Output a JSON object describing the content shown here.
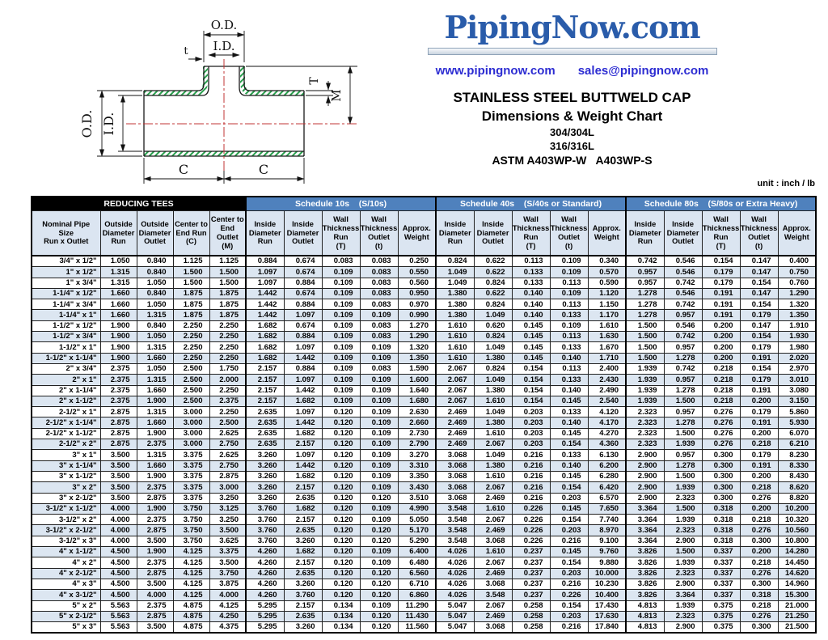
{
  "header": {
    "logo": "PipingNow.com",
    "website": "www.pipingnow.com",
    "email": "sales@pipingnow.com",
    "title1": "STAINLESS STEEL BUTTWELD CAP",
    "title2": "Dimensions & Weight Chart",
    "grade1": "304/304L",
    "grade2": "316/316L",
    "spec": "ASTM A403WP-W   A403WP-S",
    "unit_note": "unit : inch / lb"
  },
  "drawing": {
    "labels": {
      "od_branch": "O.D.",
      "id_branch": "I.D.",
      "t_branch": "t",
      "wall_T": "T",
      "length_M": "M",
      "od_run": "O.D.",
      "id_run": "I.D.",
      "c_left": "C",
      "c_right": "C"
    }
  },
  "colors": {
    "accent_blue": "#4f81bd",
    "band_black": "#000000",
    "header_bg": "#dbe5f1",
    "row_stripe": "#dce6f1",
    "logo_blue": "#2a5caa",
    "link_blue": "#2d2dd2",
    "hatch_green": "#2aa14e",
    "centerline_red": "#c23434"
  },
  "table": {
    "bands": [
      {
        "label": "REDUCING TEES"
      },
      {
        "label": "Schedule 10s    (S/10s)"
      },
      {
        "label": "Schedule 40s    (S/40s or Standard)"
      },
      {
        "label": "Schedule 80s    (S/80s or Extra Heavy)"
      }
    ],
    "columns": [
      "Nominal Pipe\nSize\nRun x Outlet",
      "Outside\nDiameter\nRun",
      "Outside\nDiameter\nOutlet",
      "Center to\nEnd Run\n(C)",
      "Center to\nEnd\nOutlet\n(M)",
      "Inside\nDiameter\nRun",
      "Inside\nDiameter\nOutlet",
      "Wall\nThickness\nRun\n(T)",
      "Wall\nThickness\nOutlet\n(t)",
      "Approx.\nWeight",
      "Inside\nDiameter\nRun",
      "Inside\nDiameter\nOutlet",
      "Wall\nThickness\nRun\n(T)",
      "Wall\nThickness\nOutlet\n(t)",
      "Approx.\nWeight",
      "Inside\nDiameter\nRun",
      "Inside\nDiameter\nOutlet",
      "Wall\nThickness\nRun\n(T)",
      "Wall\nThickness\nOutlet\n(t)",
      "Approx.\nWeight"
    ],
    "rows": [
      [
        "3/4\" x 1/2\"",
        "1.050",
        "0.840",
        "1.125",
        "1.125",
        "0.884",
        "0.674",
        "0.083",
        "0.083",
        "0.250",
        "0.824",
        "0.622",
        "0.113",
        "0.109",
        "0.340",
        "0.742",
        "0.546",
        "0.154",
        "0.147",
        "0.400"
      ],
      [
        "1\" x 1/2\"",
        "1.315",
        "0.840",
        "1.500",
        "1.500",
        "1.097",
        "0.674",
        "0.109",
        "0.083",
        "0.550",
        "1.049",
        "0.622",
        "0.133",
        "0.109",
        "0.570",
        "0.957",
        "0.546",
        "0.179",
        "0.147",
        "0.750"
      ],
      [
        "1\" x 3/4\"",
        "1.315",
        "1.050",
        "1.500",
        "1.500",
        "1.097",
        "0.884",
        "0.109",
        "0.083",
        "0.560",
        "1.049",
        "0.824",
        "0.133",
        "0.113",
        "0.590",
        "0.957",
        "0.742",
        "0.179",
        "0.154",
        "0.760"
      ],
      [
        "1-1/4\" x 1/2\"",
        "1.660",
        "0.840",
        "1.875",
        "1.875",
        "1.442",
        "0.674",
        "0.109",
        "0.083",
        "0.950",
        "1.380",
        "0.622",
        "0.140",
        "0.109",
        "1.120",
        "1.278",
        "0.546",
        "0.191",
        "0.147",
        "1.290"
      ],
      [
        "1-1/4\" x 3/4\"",
        "1.660",
        "1.050",
        "1.875",
        "1.875",
        "1.442",
        "0.884",
        "0.109",
        "0.083",
        "0.970",
        "1.380",
        "0.824",
        "0.140",
        "0.113",
        "1.150",
        "1.278",
        "0.742",
        "0.191",
        "0.154",
        "1.320"
      ],
      [
        "1-1/4\" x 1\"",
        "1.660",
        "1.315",
        "1.875",
        "1.875",
        "1.442",
        "1.097",
        "0.109",
        "0.109",
        "0.990",
        "1.380",
        "1.049",
        "0.140",
        "0.133",
        "1.170",
        "1.278",
        "0.957",
        "0.191",
        "0.179",
        "1.350"
      ],
      [
        "1-1/2\" x 1/2\"",
        "1.900",
        "0.840",
        "2.250",
        "2.250",
        "1.682",
        "0.674",
        "0.109",
        "0.083",
        "1.270",
        "1.610",
        "0.620",
        "0.145",
        "0.109",
        "1.610",
        "1.500",
        "0.546",
        "0.200",
        "0.147",
        "1.910"
      ],
      [
        "1-1/2\" x 3/4\"",
        "1.900",
        "1.050",
        "2.250",
        "2.250",
        "1.682",
        "0.884",
        "0.109",
        "0.083",
        "1.290",
        "1.610",
        "0.824",
        "0.145",
        "0.113",
        "1.630",
        "1.500",
        "0.742",
        "0.200",
        "0.154",
        "1.930"
      ],
      [
        "1-1/2\" x 1\"",
        "1.900",
        "1.315",
        "2.250",
        "2.250",
        "1.682",
        "1.097",
        "0.109",
        "0.109",
        "1.320",
        "1.610",
        "1.049",
        "0.145",
        "0.133",
        "1.670",
        "1.500",
        "0.957",
        "0.200",
        "0.179",
        "1.980"
      ],
      [
        "1-1/2\" x 1-1/4\"",
        "1.900",
        "1.660",
        "2.250",
        "2.250",
        "1.682",
        "1.442",
        "0.109",
        "0.109",
        "1.350",
        "1.610",
        "1.380",
        "0.145",
        "0.140",
        "1.710",
        "1.500",
        "1.278",
        "0.200",
        "0.191",
        "2.020"
      ],
      [
        "2\" x 3/4\"",
        "2.375",
        "1.050",
        "2.500",
        "1.750",
        "2.157",
        "0.884",
        "0.109",
        "0.083",
        "1.590",
        "2.067",
        "0.824",
        "0.154",
        "0.113",
        "2.400",
        "1.939",
        "0.742",
        "0.218",
        "0.154",
        "2.970"
      ],
      [
        "2\" x 1\"",
        "2.375",
        "1.315",
        "2.500",
        "2.000",
        "2.157",
        "1.097",
        "0.109",
        "0.109",
        "1.600",
        "2.067",
        "1.049",
        "0.154",
        "0.133",
        "2.430",
        "1.939",
        "0.957",
        "0.218",
        "0.179",
        "3.010"
      ],
      [
        "2\" x 1-1/4\"",
        "2.375",
        "1.660",
        "2.500",
        "2.250",
        "2.157",
        "1.442",
        "0.109",
        "0.109",
        "1.640",
        "2.067",
        "1.380",
        "0.154",
        "0.140",
        "2.490",
        "1.939",
        "1.278",
        "0.218",
        "0.191",
        "3.080"
      ],
      [
        "2\" x 1-1/2\"",
        "2.375",
        "1.900",
        "2.500",
        "2.375",
        "2.157",
        "1.682",
        "0.109",
        "0.109",
        "1.680",
        "2.067",
        "1.610",
        "0.154",
        "0.145",
        "2.540",
        "1.939",
        "1.500",
        "0.218",
        "0.200",
        "3.150"
      ],
      [
        "2-1/2\" x 1\"",
        "2.875",
        "1.315",
        "3.000",
        "2.250",
        "2.635",
        "1.097",
        "0.120",
        "0.109",
        "2.630",
        "2.469",
        "1.049",
        "0.203",
        "0.133",
        "4.120",
        "2.323",
        "0.957",
        "0.276",
        "0.179",
        "5.860"
      ],
      [
        "2-1/2\" x 1-1/4\"",
        "2.875",
        "1.660",
        "3.000",
        "2.500",
        "2.635",
        "1.442",
        "0.120",
        "0.109",
        "2.660",
        "2.469",
        "1.380",
        "0.203",
        "0.140",
        "4.170",
        "2.323",
        "1.278",
        "0.276",
        "0.191",
        "5.930"
      ],
      [
        "2-1/2\" x 1-1/2\"",
        "2.875",
        "1.900",
        "3.000",
        "2.625",
        "2.635",
        "1.682",
        "0.120",
        "0.109",
        "2.730",
        "2.469",
        "1.610",
        "0.203",
        "0.145",
        "4.270",
        "2.323",
        "1.500",
        "0.276",
        "0.200",
        "6.070"
      ],
      [
        "2-1/2\" x 2\"",
        "2.875",
        "2.375",
        "3.000",
        "2.750",
        "2.635",
        "2.157",
        "0.120",
        "0.109",
        "2.790",
        "2.469",
        "2.067",
        "0.203",
        "0.154",
        "4.360",
        "2.323",
        "1.939",
        "0.276",
        "0.218",
        "6.210"
      ],
      [
        "3\" x 1\"",
        "3.500",
        "1.315",
        "3.375",
        "2.625",
        "3.260",
        "1.097",
        "0.120",
        "0.109",
        "3.270",
        "3.068",
        "1.049",
        "0.216",
        "0.133",
        "6.130",
        "2.900",
        "0.957",
        "0.300",
        "0.179",
        "8.230"
      ],
      [
        "3\" x 1-1/4\"",
        "3.500",
        "1.660",
        "3.375",
        "2.750",
        "3.260",
        "1.442",
        "0.120",
        "0.109",
        "3.310",
        "3.068",
        "1.380",
        "0.216",
        "0.140",
        "6.200",
        "2.900",
        "1.278",
        "0.300",
        "0.191",
        "8.330"
      ],
      [
        "3\" x 1-1/2\"",
        "3.500",
        "1.900",
        "3.375",
        "2.875",
        "3.260",
        "1.682",
        "0.120",
        "0.109",
        "3.350",
        "3.068",
        "1.610",
        "0.216",
        "0.145",
        "6.280",
        "2.900",
        "1.500",
        "0.300",
        "0.200",
        "8.430"
      ],
      [
        "3\" x 2\"",
        "3.500",
        "2.375",
        "3.375",
        "3.000",
        "3.260",
        "2.157",
        "0.120",
        "0.109",
        "3.430",
        "3.068",
        "2.067",
        "0.216",
        "0.154",
        "6.420",
        "2.900",
        "1.939",
        "0.300",
        "0.218",
        "8.620"
      ],
      [
        "3\" x 2-1/2\"",
        "3.500",
        "2.875",
        "3.375",
        "3.250",
        "3.260",
        "2.635",
        "0.120",
        "0.120",
        "3.510",
        "3.068",
        "2.469",
        "0.216",
        "0.203",
        "6.570",
        "2.900",
        "2.323",
        "0.300",
        "0.276",
        "8.820"
      ],
      [
        "3-1/2\" x 1-1/2\"",
        "4.000",
        "1.900",
        "3.750",
        "3.125",
        "3.760",
        "1.682",
        "0.120",
        "0.109",
        "4.990",
        "3.548",
        "1.610",
        "0.226",
        "0.145",
        "7.650",
        "3.364",
        "1.500",
        "0.318",
        "0.200",
        "10.200"
      ],
      [
        "3-1/2\" x 2\"",
        "4.000",
        "2.375",
        "3.750",
        "3.250",
        "3.760",
        "2.157",
        "0.120",
        "0.109",
        "5.050",
        "3.548",
        "2.067",
        "0.226",
        "0.154",
        "7.740",
        "3.364",
        "1.939",
        "0.318",
        "0.218",
        "10.320"
      ],
      [
        "3-1/2\" x 2-1/2\"",
        "4.000",
        "2.875",
        "3.750",
        "3.500",
        "3.760",
        "2.635",
        "0.120",
        "0.120",
        "5.170",
        "3.548",
        "2.469",
        "0.226",
        "0.203",
        "8.970",
        "3.364",
        "2.323",
        "0.318",
        "0.276",
        "10.560"
      ],
      [
        "3-1/2\" x 3\"",
        "4.000",
        "3.500",
        "3.750",
        "3.625",
        "3.760",
        "3.260",
        "0.120",
        "0.120",
        "5.290",
        "3.548",
        "3.068",
        "0.226",
        "0.216",
        "9.100",
        "3.364",
        "2.900",
        "0.318",
        "0.300",
        "10.800"
      ],
      [
        "4\" x 1-1/2\"",
        "4.500",
        "1.900",
        "4.125",
        "3.375",
        "4.260",
        "1.682",
        "0.120",
        "0.109",
        "6.400",
        "4.026",
        "1.610",
        "0.237",
        "0.145",
        "9.760",
        "3.826",
        "1.500",
        "0.337",
        "0.200",
        "14.280"
      ],
      [
        "4\" x 2\"",
        "4.500",
        "2.375",
        "4.125",
        "3.500",
        "4.260",
        "2.157",
        "0.120",
        "0.109",
        "6.480",
        "4.026",
        "2.067",
        "0.237",
        "0.154",
        "9.880",
        "3.826",
        "1.939",
        "0.337",
        "0.218",
        "14.450"
      ],
      [
        "4\" x 2-1/2\"",
        "4.500",
        "2.875",
        "4.125",
        "3.750",
        "4.260",
        "2.635",
        "0.120",
        "0.120",
        "6.560",
        "4.026",
        "2.469",
        "0.237",
        "0.203",
        "10.000",
        "3.826",
        "2.323",
        "0.337",
        "0.276",
        "14.620"
      ],
      [
        "4\" x 3\"",
        "4.500",
        "3.500",
        "4.125",
        "3.875",
        "4.260",
        "3.260",
        "0.120",
        "0.120",
        "6.710",
        "4.026",
        "3.068",
        "0.237",
        "0.216",
        "10.230",
        "3.826",
        "2.900",
        "0.337",
        "0.300",
        "14.960"
      ],
      [
        "4\" x 3-1/2\"",
        "4.500",
        "4.000",
        "4.125",
        "4.000",
        "4.260",
        "3.760",
        "0.120",
        "0.120",
        "6.860",
        "4.026",
        "3.548",
        "0.237",
        "0.226",
        "10.400",
        "3.826",
        "3.364",
        "0.337",
        "0.318",
        "15.300"
      ],
      [
        "5\" x 2\"",
        "5.563",
        "2.375",
        "4.875",
        "4.125",
        "5.295",
        "2.157",
        "0.134",
        "0.109",
        "11.290",
        "5.047",
        "2.067",
        "0.258",
        "0.154",
        "17.430",
        "4.813",
        "1.939",
        "0.375",
        "0.218",
        "21.000"
      ],
      [
        "5\" x 2-1/2\"",
        "5.563",
        "2.875",
        "4.875",
        "4.250",
        "5.295",
        "2.635",
        "0.134",
        "0.120",
        "11.430",
        "5.047",
        "2.469",
        "0.258",
        "0.203",
        "17.630",
        "4.813",
        "2.323",
        "0.375",
        "0.276",
        "21.250"
      ],
      [
        "5\" x 3\"",
        "5.563",
        "3.500",
        "4.875",
        "4.375",
        "5.295",
        "3.260",
        "0.134",
        "0.120",
        "11.560",
        "5.047",
        "3.068",
        "0.258",
        "0.216",
        "17.840",
        "4.813",
        "2.900",
        "0.375",
        "0.300",
        "21.500"
      ]
    ]
  }
}
